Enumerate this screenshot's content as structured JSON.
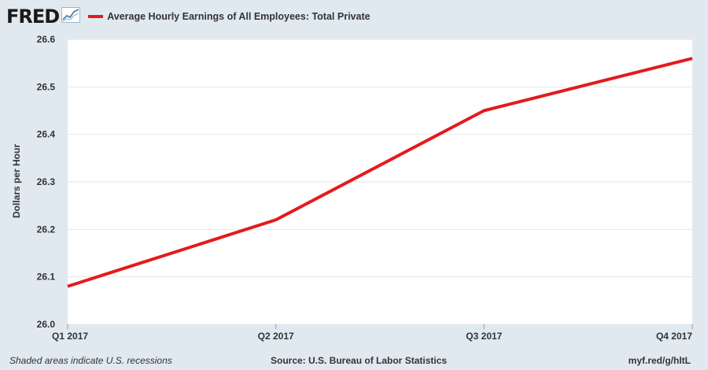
{
  "header": {
    "logo": "FRED",
    "legend_label": "Average Hourly Earnings of All Employees: Total Private",
    "legend_color": "#e41a1c",
    "logo_icon": "line-graph-icon"
  },
  "footer": {
    "notes": "Shaded areas indicate U.S. recessions",
    "source": "Source: U.S. Bureau of Labor Statistics",
    "link": "myf.red/g/hltL"
  },
  "chart_data": {
    "type": "line",
    "title": "",
    "ylabel": "Dollars per Hour",
    "xlabel": "",
    "categories": [
      "Q1 2017",
      "Q2 2017",
      "Q3 2017",
      "Q4 2017"
    ],
    "series": [
      {
        "name": "Average Hourly Earnings of All Employees: Total Private",
        "values": [
          26.08,
          26.22,
          26.45,
          26.56
        ],
        "color": "#e41a1c"
      }
    ],
    "ylim": [
      26.0,
      26.6
    ],
    "yticks": [
      "26.0",
      "26.1",
      "26.2",
      "26.3",
      "26.4",
      "26.5",
      "26.6"
    ],
    "grid": true,
    "legend": "top-left"
  }
}
